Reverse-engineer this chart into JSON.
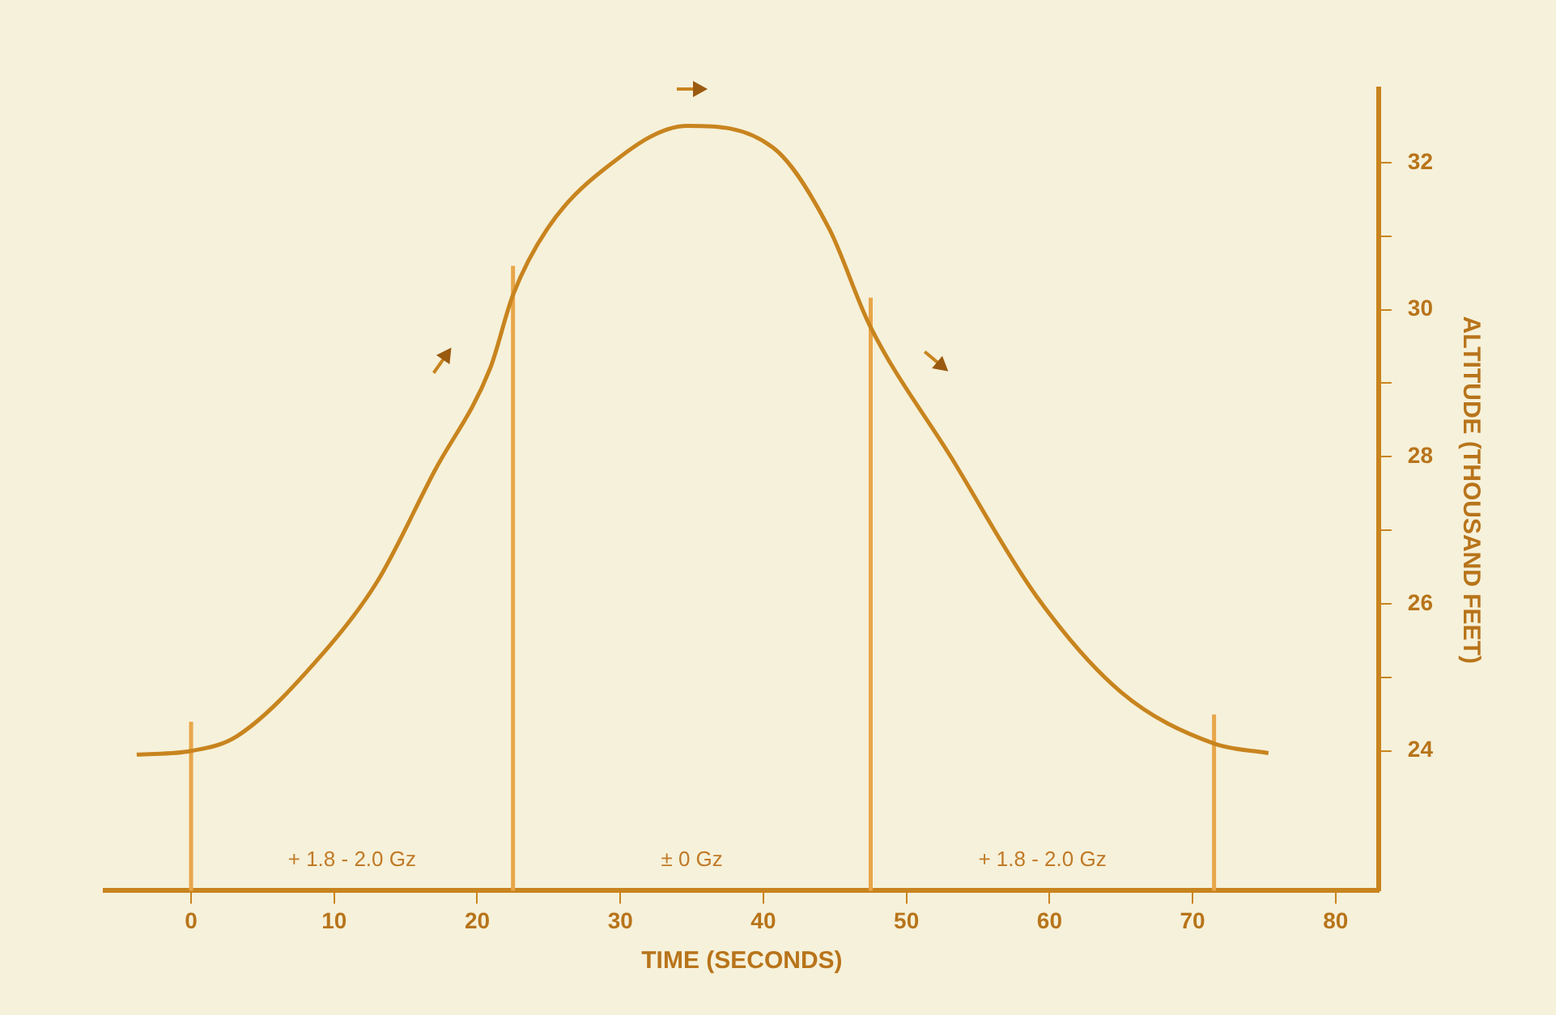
{
  "chart_data": {
    "type": "line",
    "xlabel": "TIME (SECONDS)",
    "ylabel": "ALTITUDE (THOUSAND FEET)",
    "x": [
      -3.8,
      0,
      3.2,
      9.1,
      13,
      17,
      20.9,
      22.5,
      24.9,
      28.8,
      34.7,
      40.7,
      44.6,
      47.4,
      53.1,
      59.1,
      65,
      71.5,
      75.3
    ],
    "series": [
      {
        "color": "#c8841e",
        "values": [
          23.95,
          24,
          24.2,
          25.3,
          26.3,
          27.8,
          29.2,
          30.2,
          31.1,
          31.9,
          32.5,
          32.2,
          31.1,
          29.8,
          28,
          26.1,
          24.8,
          24.1,
          23.97
        ]
      }
    ],
    "xlim": [
      -6,
      83
    ],
    "xticks": [
      0,
      10,
      20,
      30,
      40,
      50,
      60,
      70,
      80
    ],
    "ylim": [
      22.1,
      33
    ],
    "yticks": [
      24,
      {
        "value": 25,
        "label": null
      },
      26,
      {
        "value": 27,
        "label": null
      },
      28,
      {
        "value": 29,
        "label": null
      },
      30,
      {
        "value": 31,
        "label": null
      },
      32
    ],
    "ref_lines": [
      {
        "axis": "x",
        "value": 0,
        "color": "#e8a64a"
      },
      {
        "axis": "x",
        "value": 22.5,
        "color": "#e8a64a"
      },
      {
        "axis": "x",
        "value": 47.5,
        "color": "#e8a64a"
      },
      {
        "axis": "x",
        "value": 71.5,
        "color": "#e8a64a"
      }
    ],
    "annotations": [
      "+ 1.8 - 2.0 Gz",
      "± 0 Gz",
      "+ 1.8 - 2.0 Gz"
    ],
    "grid": false,
    "legend": false,
    "marker": "none",
    "line_style": "solid"
  }
}
